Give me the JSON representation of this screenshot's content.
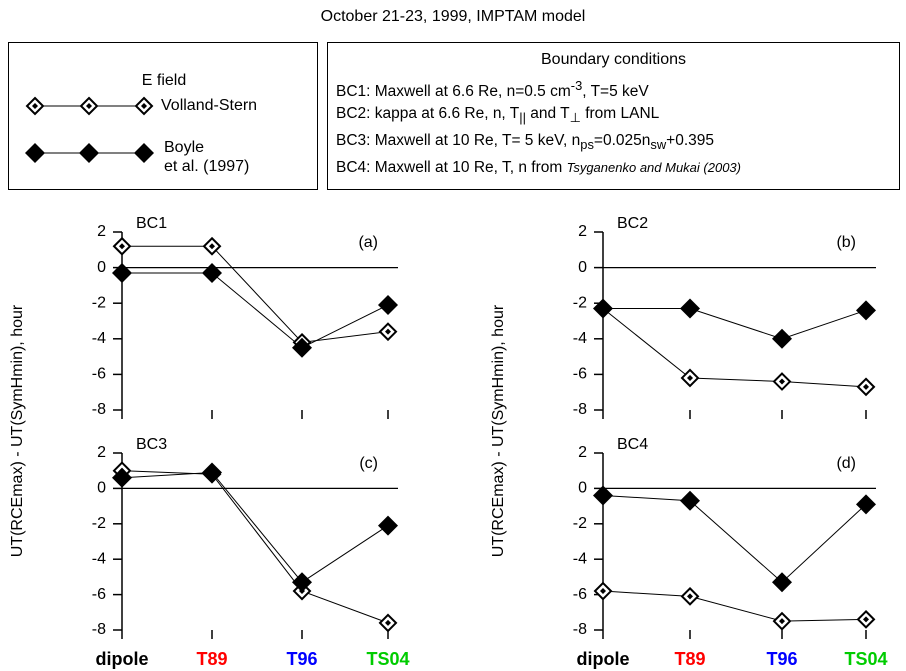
{
  "title": "October 21-23, 1999, IMPTAM model",
  "legend": {
    "title": "E field",
    "entries": [
      {
        "name": "Volland-Stern",
        "marker": "open-diamond"
      },
      {
        "name": "Boyle\net al. (1997)",
        "marker": "filled-diamond"
      }
    ]
  },
  "boundary_conditions": {
    "title": "Boundary conditions",
    "lines": [
      [
        {
          "text": "BC1: Maxwell at 6.6 Re, n=0.5 cm"
        },
        {
          "sup": "-3"
        },
        {
          "text": ", T=5 keV"
        }
      ],
      [
        {
          "text": "BC2: kappa at 6.6 Re, n, T"
        },
        {
          "sub": "||"
        },
        {
          "text": " and T"
        },
        {
          "sub": "⊥"
        },
        {
          "text": " from LANL"
        }
      ],
      [
        {
          "text": "BC3: Maxwell at 10 Re, T= 5 keV, n"
        },
        {
          "sub": "ps"
        },
        {
          "text": "=0.025n"
        },
        {
          "sub": "sw"
        },
        {
          "text": "+0.395"
        }
      ],
      [
        {
          "text": "BC4: Maxwell at 10 Re, T, n from "
        },
        {
          "italic": "Tsyganenko and Mukai (2003)"
        }
      ]
    ]
  },
  "chart_data": [
    {
      "type": "line",
      "panel": "BC1",
      "label": "(a)",
      "ylabel": "UT(RCEmax) - UT(SymHmin), hour",
      "ylim": [
        -8,
        2
      ],
      "yticks": [
        -8,
        -6,
        -4,
        -2,
        0,
        2
      ],
      "series": [
        {
          "color": "#000000",
          "marker": "open-diamond",
          "values": [
            1.2,
            1.2,
            -4.2,
            -3.6
          ]
        },
        {
          "color": "#000000",
          "marker": "filled-diamond",
          "values": [
            -0.3,
            -0.3,
            -4.5,
            -2.1
          ]
        }
      ]
    },
    {
      "type": "line",
      "panel": "BC2",
      "label": "(b)",
      "ylabel": "UT(RCEmax) - UT(SymHmin), hour",
      "ylim": [
        -8,
        2
      ],
      "yticks": [
        -8,
        -6,
        -4,
        -2,
        0,
        2
      ],
      "series": [
        {
          "color": "#000000",
          "marker": "open-diamond",
          "values": [
            -2.3,
            -6.2,
            -6.4,
            -6.7
          ]
        },
        {
          "color": "#000000",
          "marker": "filled-diamond",
          "values": [
            -2.3,
            -2.3,
            -4.0,
            -2.4
          ]
        }
      ]
    },
    {
      "type": "line",
      "panel": "BC3",
      "label": "(c)",
      "categories": [
        "dipole",
        "T89",
        "T96",
        "TS04"
      ],
      "category_colors": [
        "#000000",
        "#ff0000",
        "#0000ff",
        "#00cc00"
      ],
      "ylim": [
        -8,
        2
      ],
      "yticks": [
        -8,
        -6,
        -4,
        -2,
        0,
        2
      ],
      "series": [
        {
          "color": "#000000",
          "marker": "open-diamond",
          "values": [
            1.0,
            0.8,
            -5.8,
            -7.6
          ]
        },
        {
          "color": "#000000",
          "marker": "filled-diamond",
          "values": [
            0.6,
            0.9,
            -5.3,
            -2.1
          ]
        }
      ]
    },
    {
      "type": "line",
      "panel": "BC4",
      "label": "(d)",
      "categories": [
        "dipole",
        "T89",
        "T96",
        "TS04"
      ],
      "category_colors": [
        "#000000",
        "#ff0000",
        "#0000ff",
        "#00cc00"
      ],
      "ylim": [
        -8,
        2
      ],
      "yticks": [
        -8,
        -6,
        -4,
        -2,
        0,
        2
      ],
      "series": [
        {
          "color": "#000000",
          "marker": "open-diamond",
          "values": [
            -5.8,
            -6.1,
            -7.5,
            -7.4
          ]
        },
        {
          "color": "#000000",
          "marker": "filled-diamond",
          "values": [
            -0.4,
            -0.7,
            -5.3,
            -0.9
          ]
        }
      ]
    }
  ]
}
